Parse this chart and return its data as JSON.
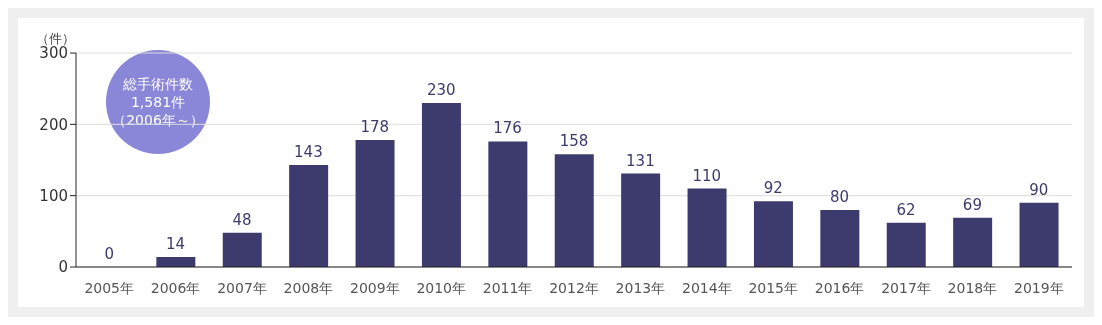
{
  "chart_data": {
    "type": "bar",
    "ylabel": "（件）",
    "categories": [
      "2005年",
      "2006年",
      "2007年",
      "2008年",
      "2009年",
      "2010年",
      "2011年",
      "2012年",
      "2013年",
      "2014年",
      "2015年",
      "2016年",
      "2017年",
      "2018年",
      "2019年"
    ],
    "values": [
      0,
      14,
      48,
      143,
      178,
      230,
      176,
      158,
      131,
      110,
      92,
      80,
      62,
      69,
      90
    ],
    "color": "#3d3b6d",
    "ylim": [
      0,
      300
    ],
    "yticks": [
      0,
      100,
      200,
      300
    ],
    "grid": "y",
    "data_labels": true,
    "annotations": [
      "総手術件数",
      "1,581件",
      "（2006年～）"
    ]
  }
}
